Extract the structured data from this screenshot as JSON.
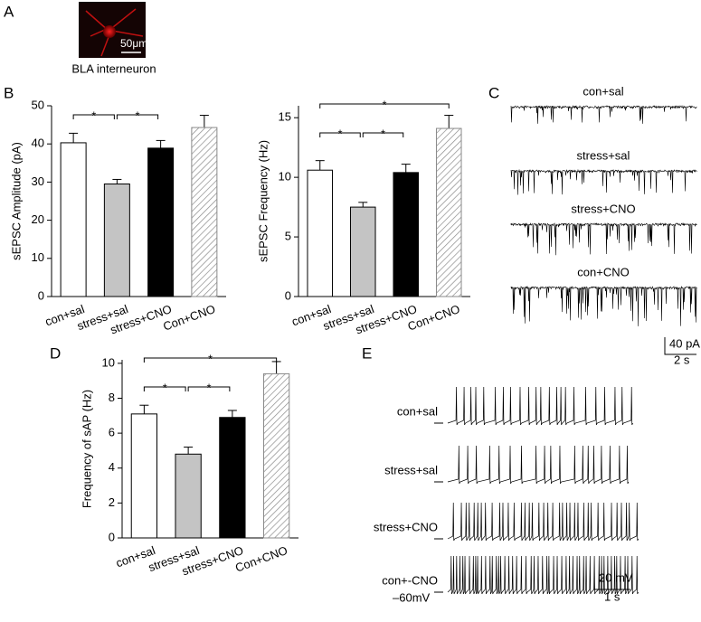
{
  "panel_letters": [
    "A",
    "B",
    "C",
    "D",
    "E"
  ],
  "image": {
    "scale_label": "50μm",
    "caption": "BLA interneuron"
  },
  "chart_data": [
    {
      "type": "bar",
      "y_label": "sEPSC Amplitude (pA)",
      "categories": [
        "con+sal",
        "stress+sal",
        "stress+CNO",
        "Con+CNO"
      ],
      "values": [
        40.3,
        29.5,
        38.9,
        44.3
      ],
      "errors": [
        2.5,
        1.2,
        2.0,
        3.2
      ],
      "colors": [
        "#ffffff",
        "#c4c4c4",
        "#000000",
        "#8a8a8a"
      ],
      "patterns": [
        "solid",
        "solid",
        "solid",
        "hatch"
      ],
      "ylim": [
        0,
        50
      ],
      "yticks": [
        0,
        10,
        20,
        30,
        40,
        50
      ],
      "grid": false,
      "significance": [
        {
          "from": 0,
          "to": 1,
          "label": "*"
        },
        {
          "from": 1,
          "to": 2,
          "label": "*"
        }
      ]
    },
    {
      "type": "bar",
      "y_label": "sEPSC Frequency (Hz)",
      "categories": [
        "con+sal",
        "stress+sal",
        "stress+CNO",
        "Con+CNO"
      ],
      "values": [
        10.6,
        7.5,
        10.4,
        14.1
      ],
      "errors": [
        0.8,
        0.4,
        0.7,
        1.1
      ],
      "colors": [
        "#ffffff",
        "#c4c4c4",
        "#000000",
        "#8a8a8a"
      ],
      "patterns": [
        "solid",
        "solid",
        "solid",
        "hatch"
      ],
      "ylim": [
        0,
        16
      ],
      "yticks": [
        0,
        5,
        10,
        15
      ],
      "grid": false,
      "significance": [
        {
          "from": 0,
          "to": 3,
          "label": "*"
        },
        {
          "from": 0,
          "to": 1,
          "label": "*"
        },
        {
          "from": 1,
          "to": 2,
          "label": "*"
        }
      ]
    },
    {
      "type": "bar",
      "y_label": "Frequency of sAP (Hz)",
      "categories": [
        "con+sal",
        "stress+sal",
        "stress+CNO",
        "Con+CNO"
      ],
      "values": [
        7.1,
        4.8,
        6.9,
        9.4
      ],
      "errors": [
        0.5,
        0.4,
        0.4,
        0.7
      ],
      "colors": [
        "#ffffff",
        "#c4c4c4",
        "#000000",
        "#8a8a8a"
      ],
      "patterns": [
        "solid",
        "solid",
        "solid",
        "hatch"
      ],
      "ylim": [
        0,
        10.2
      ],
      "yticks": [
        0,
        2,
        4,
        6,
        8,
        10
      ],
      "grid": false,
      "significance": [
        {
          "from": 0,
          "to": 3,
          "label": "*"
        },
        {
          "from": 0,
          "to": 1,
          "label": "*"
        },
        {
          "from": 1,
          "to": 2,
          "label": "*"
        }
      ]
    }
  ],
  "traces_c": {
    "labels": [
      "con+sal",
      "stress+sal",
      "stress+CNO",
      "con+CNO"
    ],
    "scale_y": "40 pA",
    "scale_x": "2 s"
  },
  "traces_e": {
    "labels": [
      "con+sal",
      "stress+sal",
      "stress+CNO",
      "con+-CNO"
    ],
    "baseline": "–60mV",
    "scale_y": "20 mV",
    "scale_x": "1 s"
  }
}
